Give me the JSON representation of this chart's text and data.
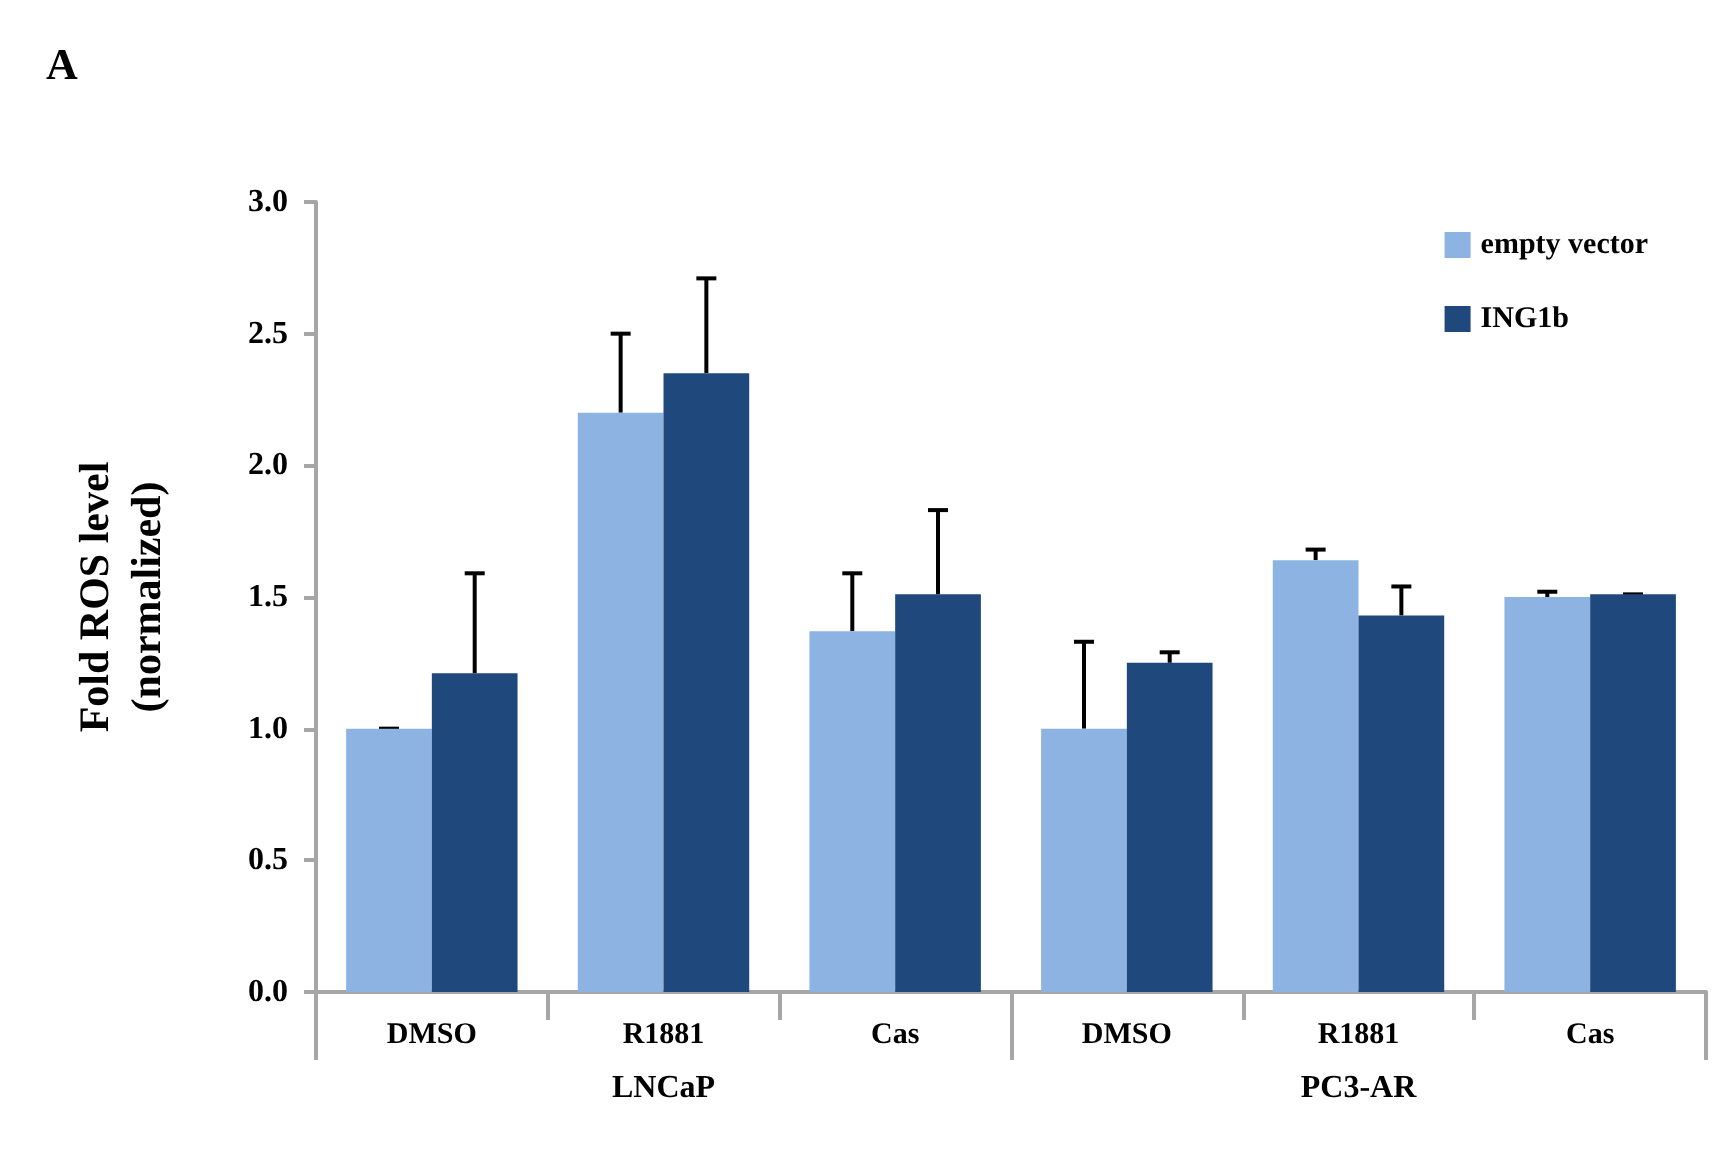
{
  "chart_data": {
    "type": "bar",
    "title": "A",
    "ylabel": "Fold ROS level\n(normalized)",
    "categories": [
      "DMSO",
      "R1881",
      "Cas",
      "DMSO",
      "R1881",
      "Cas"
    ],
    "annotations": [
      "LNCaP",
      "PC3-AR"
    ],
    "series": [
      {
        "name": "empty vector",
        "color": "#8db3e2",
        "values": [
          1.0,
          2.2,
          1.37,
          1.0,
          1.64,
          1.5
        ],
        "errors": [
          [
            1.0,
            1.0
          ],
          [
            2.2,
            2.5
          ],
          [
            1.37,
            1.59
          ],
          [
            1.0,
            1.33
          ],
          [
            1.64,
            1.68
          ],
          [
            1.5,
            1.52
          ]
        ]
      },
      {
        "name": "ING1b",
        "color": "#1f497d",
        "values": [
          1.21,
          2.35,
          1.51,
          1.25,
          1.43,
          1.51
        ],
        "errors": [
          [
            1.21,
            1.59
          ],
          [
            2.35,
            2.71
          ],
          [
            1.51,
            1.83
          ],
          [
            1.25,
            1.29
          ],
          [
            1.43,
            1.54
          ],
          [
            1.51,
            1.51
          ]
        ]
      }
    ],
    "ylim": [
      0,
      3
    ],
    "yticks": [
      {
        "value": 0,
        "label": "0.0"
      },
      {
        "value": 0.5,
        "label": "0.5"
      },
      {
        "value": 1,
        "label": "1.0"
      },
      {
        "value": 1.5,
        "label": "1.5"
      },
      {
        "value": 2,
        "label": "2.0"
      },
      {
        "value": 2.5,
        "label": "2.5"
      },
      {
        "value": 3,
        "label": "3.0"
      }
    ],
    "grid": false,
    "legend": "top right"
  }
}
